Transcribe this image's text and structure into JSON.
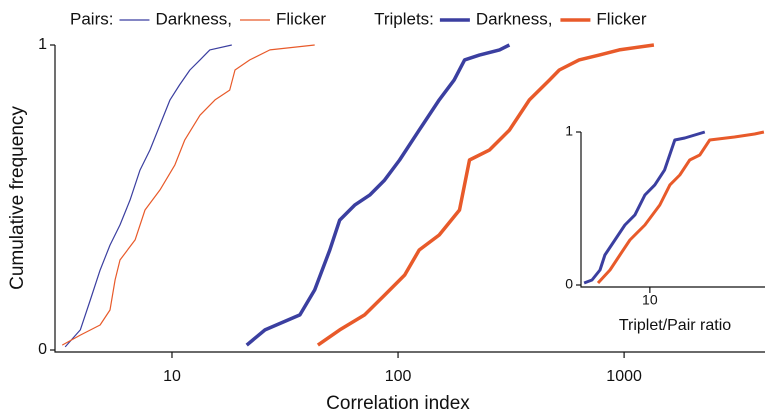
{
  "chart_data": [
    {
      "type": "line",
      "xlabel": "Correlation index",
      "ylabel": "Cumulative frequency",
      "xscale": "log",
      "xlim": [
        3.1,
        4200
      ],
      "xticks": [
        10,
        100,
        1000
      ],
      "ylim": [
        0,
        1
      ],
      "yticks": [
        0,
        1
      ],
      "groups": [
        {
          "name": "Pairs:",
          "line_width": 1.2,
          "series": [
            {
              "name": "Darkness,",
              "color": "#3b3fa0",
              "x": [
                3.37,
                3.93,
                4.35,
                4.81,
                5.32,
                5.89,
                6.53,
                7.22,
                7.99,
                8.85,
                9.8,
                10.8,
                12.0,
                13.3,
                14.7,
                18.4
              ],
              "values": [
                0.01,
                0.066,
                0.164,
                0.262,
                0.344,
                0.41,
                0.492,
                0.59,
                0.656,
                0.738,
                0.82,
                0.869,
                0.918,
                0.951,
                0.984,
                1.0
              ]
            },
            {
              "name": "Flicker",
              "color": "#e85a2a",
              "x": [
                3.27,
                3.93,
                4.81,
                5.32,
                5.6,
                5.89,
                6.87,
                7.6,
                8.85,
                10.3,
                11.4,
                13.3,
                15.5,
                18.0,
                19.0,
                22.1,
                27.1,
                42.8
              ],
              "values": [
                0.016,
                0.049,
                0.082,
                0.131,
                0.23,
                0.295,
                0.361,
                0.459,
                0.525,
                0.607,
                0.689,
                0.77,
                0.82,
                0.852,
                0.918,
                0.951,
                0.984,
                1.0
              ]
            }
          ]
        },
        {
          "name": "Triplets:",
          "line_width": 3.5,
          "series": [
            {
              "name": "Darkness,",
              "color": "#3b3fa0",
              "x": [
                21.4,
                25.8,
                36.8,
                42.8,
                49.9,
                55.2,
                64.3,
                74.9,
                87.2,
                101.6,
                124,
                152,
                177,
                197,
                229,
                281,
                311
              ],
              "values": [
                0.016,
                0.066,
                0.115,
                0.197,
                0.328,
                0.426,
                0.475,
                0.508,
                0.557,
                0.623,
                0.721,
                0.82,
                0.885,
                0.951,
                0.967,
                0.984,
                1.0
              ]
            },
            {
              "name": "Flicker",
              "color": "#e85a2a",
              "x": [
                44.2,
                55.2,
                71.1,
                87.2,
                107,
                124,
                152,
                187,
                207,
                254,
                311,
                381,
                467,
                517,
                632,
                776,
                951,
                1355
              ],
              "values": [
                0.016,
                0.066,
                0.115,
                0.18,
                0.246,
                0.328,
                0.377,
                0.459,
                0.623,
                0.656,
                0.721,
                0.82,
                0.885,
                0.918,
                0.951,
                0.967,
                0.984,
                1.0
              ]
            }
          ]
        }
      ]
    },
    {
      "type": "line",
      "xlabel": "Triplet/Pair ratio",
      "xscale": "log",
      "xlim": [
        3.5,
        61
      ],
      "xticks": [
        10
      ],
      "ylim": [
        0,
        1
      ],
      "yticks": [
        0,
        1
      ],
      "line_width": 3,
      "series": [
        {
          "color": "#3b3fa0",
          "x": [
            3.56,
            4.03,
            4.57,
            4.94,
            5.78,
            6.76,
            7.91,
            9.25,
            10.8,
            12.6,
            14.8,
            17.3,
            23.7
          ],
          "values": [
            0.013,
            0.033,
            0.098,
            0.196,
            0.294,
            0.392,
            0.458,
            0.588,
            0.654,
            0.752,
            0.948,
            0.961,
            1.0
          ]
        },
        {
          "color": "#e85a2a",
          "x": [
            4.43,
            5.35,
            6.25,
            7.31,
            9.25,
            11.7,
            13.7,
            16.0,
            18.7,
            21.9,
            25.6,
            37.8,
            51.8,
            60
          ],
          "values": [
            0.013,
            0.098,
            0.196,
            0.294,
            0.392,
            0.523,
            0.654,
            0.719,
            0.817,
            0.85,
            0.948,
            0.967,
            0.987,
            1.0
          ]
        }
      ]
    }
  ]
}
